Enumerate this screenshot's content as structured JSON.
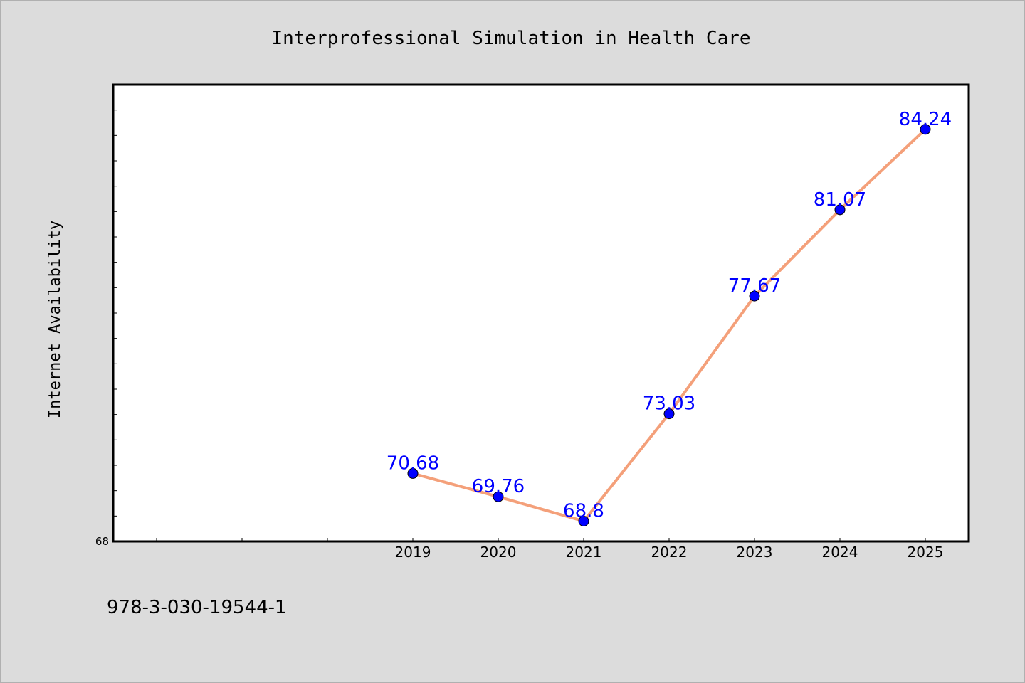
{
  "chart_data": {
    "type": "line",
    "title": "Interprofessional Simulation in Health Care",
    "ylabel": "Internet Availability",
    "xlabel": "",
    "categories": [
      "2019",
      "2020",
      "2021",
      "2022",
      "2023",
      "2024",
      "2025"
    ],
    "x_axis_extra_ticks": 3,
    "series": [
      {
        "values": [
          70.68,
          69.76,
          68.8,
          73.03,
          77.67,
          81.07,
          84.24
        ]
      }
    ],
    "data_labels": [
      "70.68",
      "69.76",
      "68.8",
      "73.03",
      "77.67",
      "81.07",
      "84.24"
    ],
    "ylim": [
      68,
      86
    ],
    "y_minor_tick_step": 1,
    "y_tick_labels": [
      "68"
    ],
    "grid": false,
    "line_color": "#f4a07a",
    "marker_color": "#0000ff",
    "label_color": "#0000ff",
    "footer": "978-3-030-19544-1"
  }
}
